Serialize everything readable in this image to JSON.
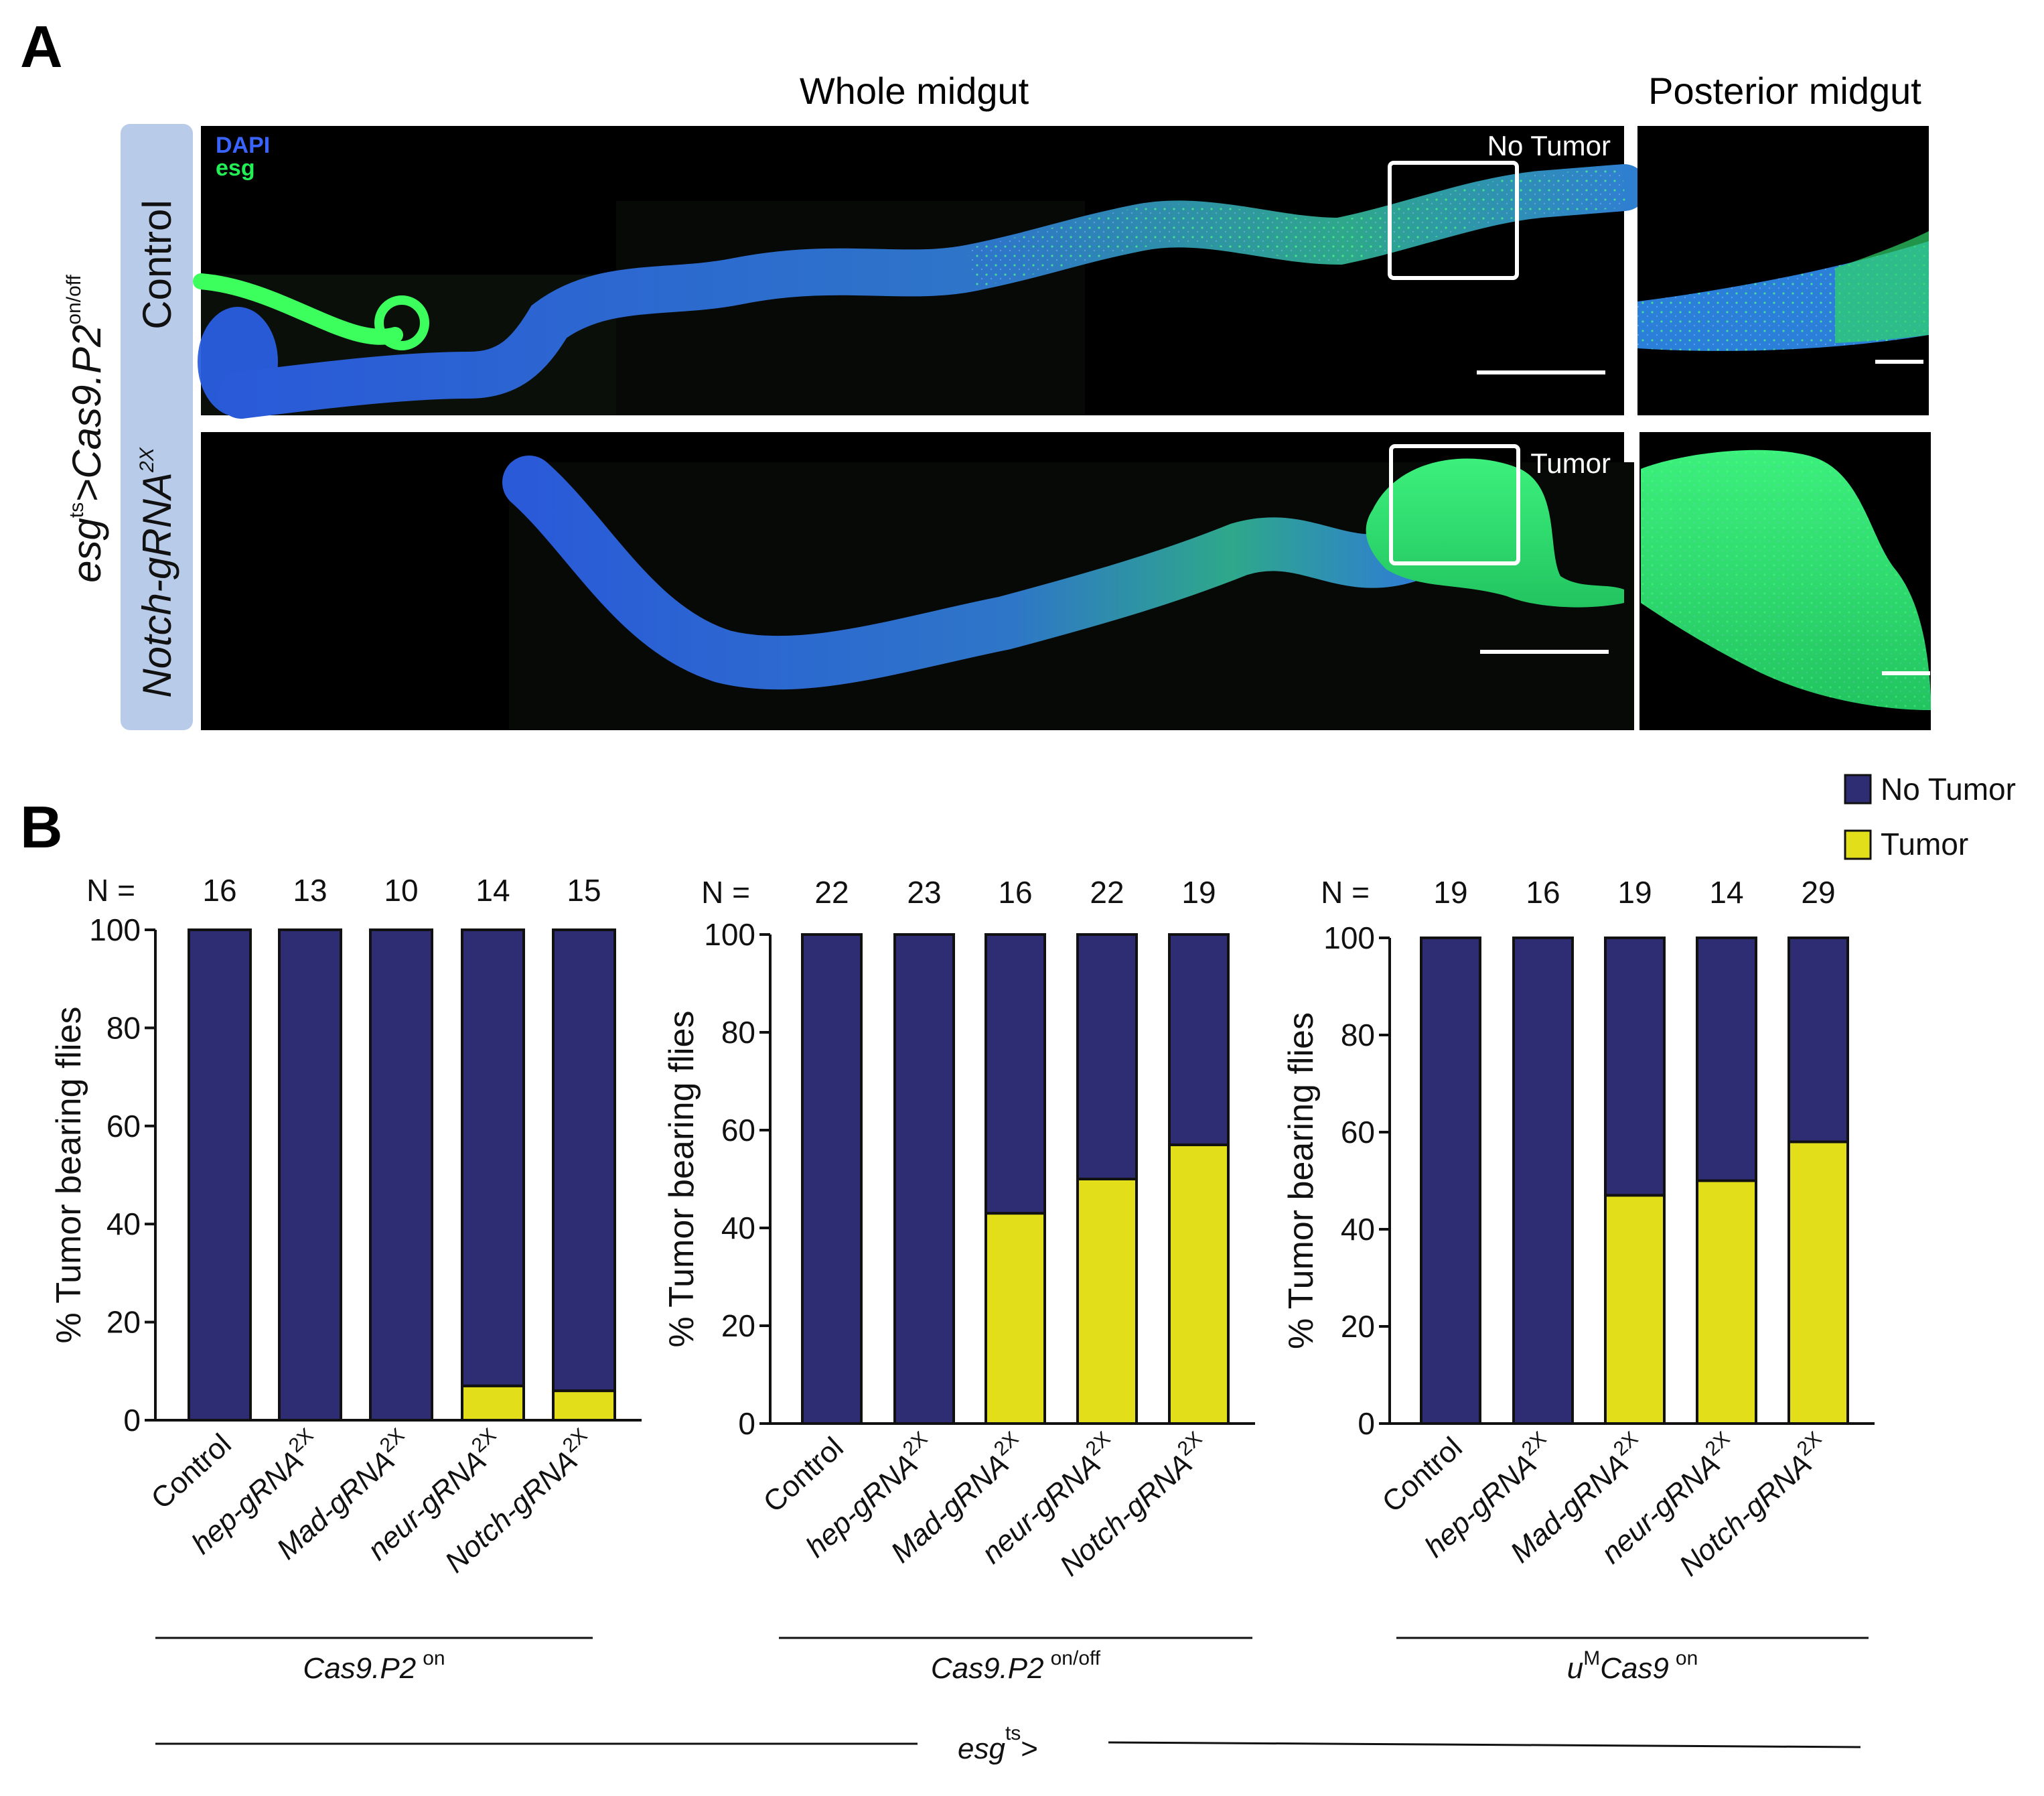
{
  "panel_a": {
    "label": "A",
    "col_titles": [
      "Whole midgut",
      "Posterior midgut"
    ],
    "genotype_prefix": "esg",
    "genotype_sup": "ts",
    "genotype_mid": ">Cas9.P2",
    "genotype_sup2": "on/off",
    "row_labels": [
      "Control",
      "Notch-gRNA"
    ],
    "row2_sup": "2X",
    "stain_labels": [
      "DAPI",
      "esg"
    ],
    "stain_colors": [
      "#3a64ff",
      "#22ee55"
    ],
    "annotations": [
      "No Tumor",
      "Tumor"
    ]
  },
  "panel_b": {
    "label": "B",
    "n_prefix": "N =",
    "bottom_label": "esg",
    "bottom_sup": "ts",
    "bottom_suffix": ">"
  },
  "chart_data": [
    {
      "type": "bar",
      "stacked": true,
      "ylabel": "% Tumor bearing flies",
      "ylim": [
        0,
        100
      ],
      "yticks": [
        "0",
        "20",
        "40",
        "60",
        "80",
        "100"
      ],
      "categories": [
        "Control",
        "hep-gRNA",
        "Mad-gRNA",
        "neur-gRNA",
        "Notch-gRNA"
      ],
      "category_sup": [
        "",
        "2X",
        "2X",
        "2X",
        "2X"
      ],
      "n": [
        "16",
        "13",
        "10",
        "14",
        "15"
      ],
      "group_label": "Cas9.P2",
      "group_sup": "on",
      "series": [
        {
          "name": "Tumor",
          "color": "#e2de1a",
          "values": [
            0,
            0,
            0,
            7,
            6
          ]
        },
        {
          "name": "No Tumor",
          "color": "#2e2d73",
          "values": [
            100,
            100,
            100,
            93,
            94
          ]
        }
      ]
    },
    {
      "type": "bar",
      "stacked": true,
      "ylabel": "% Tumor bearing flies",
      "ylim": [
        0,
        100
      ],
      "yticks": [
        "0",
        "20",
        "40",
        "60",
        "80",
        "100"
      ],
      "categories": [
        "Control",
        "hep-gRNA",
        "Mad-gRNA",
        "neur-gRNA",
        "Notch-gRNA"
      ],
      "category_sup": [
        "",
        "2X",
        "2X",
        "2X",
        "2X"
      ],
      "n": [
        "22",
        "23",
        "16",
        "22",
        "19"
      ],
      "group_label": "Cas9.P2",
      "group_sup": "on/off",
      "series": [
        {
          "name": "Tumor",
          "color": "#e2de1a",
          "values": [
            0,
            0,
            43,
            50,
            57
          ]
        },
        {
          "name": "No Tumor",
          "color": "#2e2d73",
          "values": [
            100,
            100,
            57,
            50,
            43
          ]
        }
      ]
    },
    {
      "type": "bar",
      "stacked": true,
      "ylabel": "% Tumor bearing flies",
      "ylim": [
        0,
        100
      ],
      "yticks": [
        "0",
        "20",
        "40",
        "60",
        "80",
        "100"
      ],
      "categories": [
        "Control",
        "hep-gRNA",
        "Mad-gRNA",
        "neur-gRNA",
        "Notch-gRNA"
      ],
      "category_sup": [
        "",
        "2X",
        "2X",
        "2X",
        "2X"
      ],
      "n": [
        "19",
        "16",
        "19",
        "14",
        "29"
      ],
      "group_label": "Cas9",
      "group_prefix": "u",
      "group_prefix_sup": "M",
      "group_sup": "on",
      "series": [
        {
          "name": "Tumor",
          "color": "#e2de1a",
          "values": [
            0,
            0,
            47,
            50,
            58
          ]
        },
        {
          "name": "No Tumor",
          "color": "#2e2d73",
          "values": [
            100,
            100,
            53,
            50,
            42
          ]
        }
      ]
    }
  ],
  "legend": [
    {
      "name": "No Tumor",
      "color": "#2e2d73"
    },
    {
      "name": "Tumor",
      "color": "#e2de1a"
    }
  ]
}
